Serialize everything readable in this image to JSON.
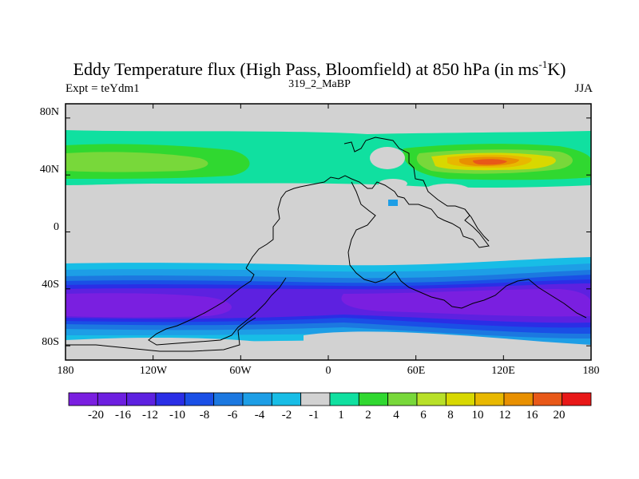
{
  "title": {
    "main": "Eddy Temperature flux (High Pass, Bloomfield) at 850 hPa (in ms",
    "sup": "-1",
    "tail": "K)"
  },
  "subtitle": "319_2_MaBP",
  "expt_label": "Expt = teYdm1",
  "season": "JJA",
  "map": {
    "lat_ticks": [
      "80N",
      "40N",
      "0",
      "40S",
      "80S"
    ],
    "lat_values": [
      80,
      40,
      0,
      -40,
      -80
    ],
    "lon_ticks": [
      "180",
      "120W",
      "60W",
      "0",
      "60E",
      "120E",
      "180"
    ],
    "lon_values": [
      -180,
      -120,
      -60,
      0,
      60,
      120,
      180
    ],
    "lat_range": [
      -90,
      90
    ],
    "lon_range": [
      -180,
      180
    ],
    "background_color": "#d2d2d2"
  },
  "colorbar": {
    "labels": [
      "-20",
      "-16",
      "-12",
      "-10",
      "-8",
      "-6",
      "-4",
      "-2",
      "-1",
      "1",
      "2",
      "4",
      "6",
      "8",
      "10",
      "12",
      "16",
      "20"
    ],
    "colors": [
      "#7a1fe0",
      "#6d1fe0",
      "#5d21e0",
      "#2a2ee6",
      "#1a4fe6",
      "#1c78e0",
      "#1d9ee6",
      "#18bde6",
      "#d2d2d2",
      "#10e0a0",
      "#30d830",
      "#78d83a",
      "#b8e028",
      "#d8d800",
      "#e8b800",
      "#e89000",
      "#e85818",
      "#e81818"
    ]
  }
}
